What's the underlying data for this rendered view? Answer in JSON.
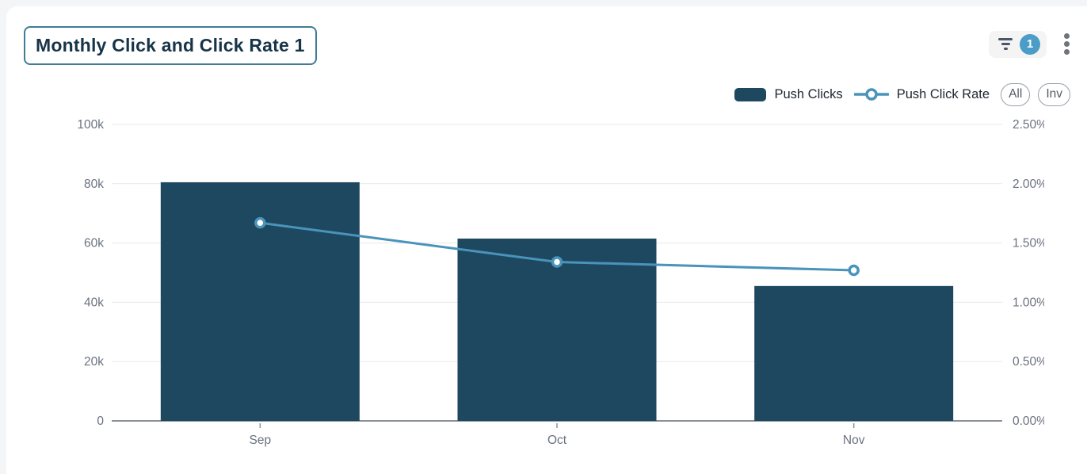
{
  "header": {
    "title": "Monthly Click and Click Rate 1",
    "filter_count": "1"
  },
  "legend": {
    "series": [
      {
        "label": "Push Clicks"
      },
      {
        "label": "Push Click Rate"
      }
    ],
    "all_label": "All",
    "inv_label": "Inv"
  },
  "colors": {
    "bar": "#1d4860",
    "line": "#4a93ba",
    "badge": "#4b9cc6",
    "axis_text": "#6b7280",
    "gridline": "#e6e8eb",
    "axis_line": "#8b919a",
    "title_text": "#173448",
    "title_border": "#417c95"
  },
  "chart_data": {
    "type": "combo",
    "categories": [
      "Sep",
      "Oct",
      "Nov"
    ],
    "series": [
      {
        "name": "Push Clicks",
        "type": "bar",
        "axis": "left",
        "values": [
          80500,
          61500,
          45500
        ],
        "color": "#1d4860"
      },
      {
        "name": "Push Click Rate",
        "type": "line",
        "axis": "right",
        "values_percent": [
          1.67,
          1.34,
          1.27
        ],
        "color": "#4a93ba"
      }
    ],
    "y_left": {
      "ticks": [
        "0",
        "20k",
        "40k",
        "60k",
        "80k",
        "100k"
      ],
      "min": 0,
      "max": 100000
    },
    "y_right": {
      "ticks": [
        "0.00%",
        "0.50%",
        "1.00%",
        "1.50%",
        "2.00%",
        "2.50%"
      ],
      "min": 0,
      "max": 2.5
    },
    "grid": true,
    "legend_position": "top-right",
    "title": "Monthly Click and Click Rate 1"
  }
}
